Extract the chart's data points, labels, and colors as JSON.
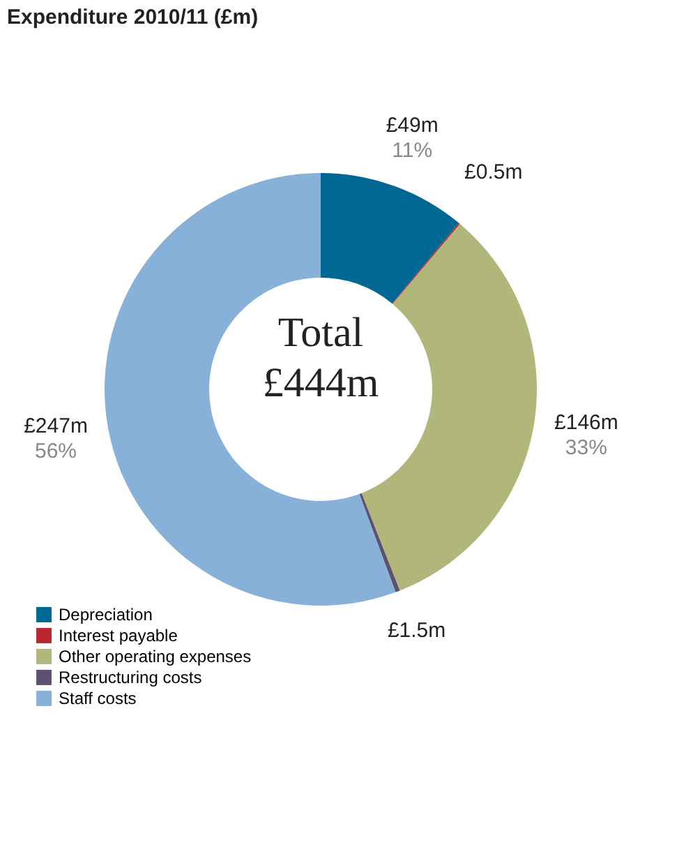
{
  "chart_data": {
    "type": "donut",
    "title": "Expenditure 2010/11 (£m)",
    "categories": [
      "Depreciation",
      "Interest payable",
      "Other operating expenses",
      "Restructuring costs",
      "Staff costs"
    ],
    "values": [
      49,
      0.5,
      146,
      1.5,
      247
    ],
    "colors": [
      "#006893",
      "#b8282e",
      "#b1b67a",
      "#5e5070",
      "#87b1d8"
    ],
    "value_labels": [
      "£49m",
      "£0.5m",
      "£146m",
      "£1.5m",
      "£247m"
    ],
    "annotations": [
      "Total\n£444m",
      {
        "text": "11%",
        "x": "Depreciation"
      },
      {
        "text": "33%",
        "x": "Other operating expenses"
      },
      {
        "text": "56%",
        "x": "Staff costs"
      }
    ],
    "legend": "bottom left"
  }
}
